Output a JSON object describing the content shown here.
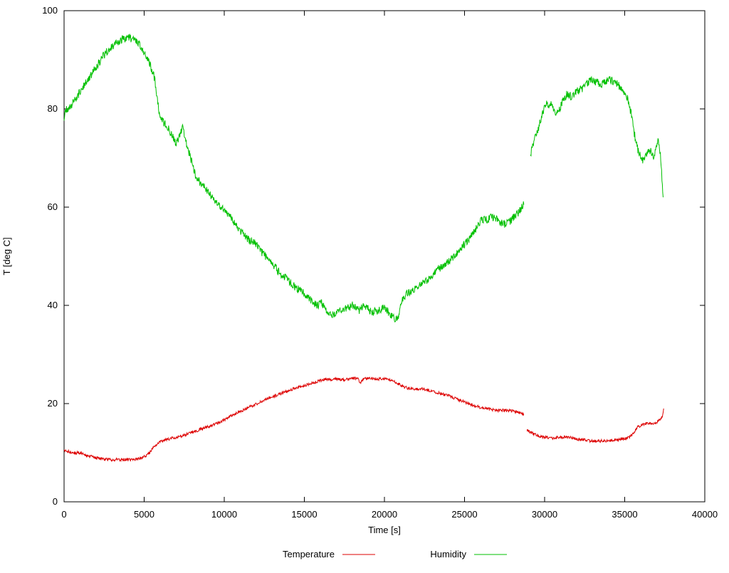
{
  "chart_data": {
    "type": "line",
    "title": "",
    "xlabel": "Time [s]",
    "ylabel": "T [deg C]",
    "xlim": [
      0,
      40000
    ],
    "ylim": [
      0,
      100
    ],
    "xticks": [
      0,
      5000,
      10000,
      15000,
      20000,
      25000,
      30000,
      35000,
      40000
    ],
    "yticks": [
      0,
      20,
      40,
      60,
      80,
      100
    ],
    "grid": false,
    "legend_position": "bottom-center",
    "background": "#ffffff",
    "axis_color": "#000000",
    "series": [
      {
        "name": "Temperature",
        "color": "#dd0000",
        "noise": 0.3,
        "segments": [
          [
            [
              0,
              10.5
            ],
            [
              300,
              10.2
            ],
            [
              600,
              10.0
            ],
            [
              900,
              10.0
            ],
            [
              1200,
              9.7
            ],
            [
              1500,
              9.4
            ],
            [
              1800,
              9.1
            ],
            [
              2100,
              8.9
            ],
            [
              2400,
              8.7
            ],
            [
              2800,
              8.6
            ],
            [
              3300,
              8.6
            ],
            [
              3800,
              8.6
            ],
            [
              4300,
              8.6
            ],
            [
              4700,
              8.8
            ],
            [
              5100,
              9.3
            ],
            [
              5400,
              10.2
            ],
            [
              5600,
              11.3
            ],
            [
              5800,
              11.8
            ],
            [
              6000,
              12.2
            ],
            [
              6300,
              12.6
            ],
            [
              6700,
              12.9
            ],
            [
              7100,
              13.2
            ],
            [
              7500,
              13.6
            ],
            [
              7900,
              14.1
            ],
            [
              8300,
              14.5
            ],
            [
              8700,
              15.0
            ],
            [
              9100,
              15.4
            ],
            [
              9500,
              15.9
            ],
            [
              9900,
              16.5
            ],
            [
              10300,
              17.3
            ],
            [
              10700,
              18.0
            ],
            [
              11100,
              18.5
            ],
            [
              11500,
              19.2
            ],
            [
              11900,
              19.8
            ],
            [
              12300,
              20.4
            ],
            [
              12700,
              21.0
            ],
            [
              13100,
              21.5
            ],
            [
              13500,
              22.0
            ],
            [
              13900,
              22.5
            ],
            [
              14300,
              23.0
            ],
            [
              14700,
              23.4
            ],
            [
              15100,
              23.8
            ],
            [
              15500,
              24.2
            ],
            [
              15900,
              24.6
            ],
            [
              16300,
              25.0
            ],
            [
              16700,
              24.8
            ],
            [
              17100,
              25.0
            ],
            [
              17500,
              24.8
            ],
            [
              17900,
              25.1
            ],
            [
              18300,
              25.2
            ],
            [
              18500,
              24.3
            ],
            [
              18700,
              25.0
            ],
            [
              19100,
              25.2
            ],
            [
              19500,
              25.0
            ],
            [
              19900,
              25.1
            ],
            [
              20300,
              24.8
            ],
            [
              20700,
              24.3
            ],
            [
              21100,
              23.6
            ],
            [
              21500,
              23.1
            ],
            [
              21900,
              23.0
            ],
            [
              22300,
              23.0
            ],
            [
              22700,
              22.8
            ],
            [
              23100,
              22.4
            ],
            [
              23500,
              22.1
            ],
            [
              23900,
              21.7
            ],
            [
              24300,
              21.2
            ],
            [
              24700,
              20.7
            ],
            [
              25100,
              20.2
            ],
            [
              25500,
              19.7
            ],
            [
              25900,
              19.3
            ],
            [
              26300,
              19.0
            ],
            [
              26700,
              18.8
            ],
            [
              27100,
              18.6
            ],
            [
              27500,
              18.6
            ],
            [
              27900,
              18.5
            ],
            [
              28300,
              18.3
            ],
            [
              28700,
              17.9
            ]
          ],
          [
            [
              28900,
              14.6
            ],
            [
              29200,
              14.0
            ],
            [
              29500,
              13.6
            ],
            [
              29800,
              13.3
            ],
            [
              30100,
              13.1
            ],
            [
              30500,
              13.0
            ],
            [
              30900,
              13.1
            ],
            [
              31300,
              13.2
            ],
            [
              31700,
              13.0
            ],
            [
              32100,
              12.7
            ],
            [
              32500,
              12.6
            ],
            [
              32900,
              12.4
            ],
            [
              33300,
              12.4
            ],
            [
              33700,
              12.4
            ],
            [
              34100,
              12.5
            ],
            [
              34500,
              12.6
            ],
            [
              34900,
              12.9
            ],
            [
              35200,
              13.0
            ],
            [
              35500,
              13.8
            ],
            [
              35800,
              15.2
            ],
            [
              36100,
              15.8
            ],
            [
              36400,
              16.0
            ],
            [
              36700,
              16.0
            ],
            [
              37000,
              16.2
            ],
            [
              37200,
              16.8
            ],
            [
              37350,
              17.5
            ],
            [
              37430,
              19.0
            ]
          ]
        ]
      },
      {
        "name": "Humidity",
        "color": "#00c000",
        "noise": 0.8,
        "segments": [
          [
            [
              0,
              78.0
            ],
            [
              150,
              80.0
            ],
            [
              400,
              80.5
            ],
            [
              700,
              82.0
            ],
            [
              1000,
              83.5
            ],
            [
              1300,
              85.0
            ],
            [
              1700,
              87.0
            ],
            [
              2100,
              89.0
            ],
            [
              2500,
              91.0
            ],
            [
              2900,
              92.5
            ],
            [
              3300,
              93.5
            ],
            [
              3700,
              94.3
            ],
            [
              4100,
              94.5
            ],
            [
              4400,
              94.0
            ],
            [
              4700,
              93.0
            ],
            [
              5000,
              91.5
            ],
            [
              5300,
              89.5
            ],
            [
              5600,
              87.0
            ],
            [
              5750,
              84.0
            ],
            [
              5900,
              80.0
            ],
            [
              6100,
              78.0
            ],
            [
              6400,
              76.5
            ],
            [
              6700,
              75.0
            ],
            [
              7000,
              73.0
            ],
            [
              7200,
              74.5
            ],
            [
              7400,
              76.0
            ],
            [
              7600,
              73.5
            ],
            [
              7900,
              70.0
            ],
            [
              8200,
              66.5
            ],
            [
              8500,
              65.0
            ],
            [
              8800,
              64.0
            ],
            [
              9100,
              62.5
            ],
            [
              9500,
              61.0
            ],
            [
              10000,
              59.5
            ],
            [
              10500,
              57.5
            ],
            [
              11000,
              55.0
            ],
            [
              11500,
              53.5
            ],
            [
              12000,
              52.5
            ],
            [
              12300,
              51.0
            ],
            [
              12700,
              49.5
            ],
            [
              13100,
              48.0
            ],
            [
              13500,
              46.5
            ],
            [
              14000,
              45.0
            ],
            [
              14500,
              43.5
            ],
            [
              15000,
              42.5
            ],
            [
              15400,
              41.0
            ],
            [
              15800,
              40.0
            ],
            [
              16100,
              40.5
            ],
            [
              16400,
              38.5
            ],
            [
              16800,
              38.0
            ],
            [
              17200,
              39.0
            ],
            [
              17600,
              39.5
            ],
            [
              18000,
              40.0
            ],
            [
              18400,
              39.0
            ],
            [
              18800,
              40.0
            ],
            [
              19200,
              38.5
            ],
            [
              19600,
              39.0
            ],
            [
              20000,
              39.5
            ],
            [
              20400,
              38.0
            ],
            [
              20700,
              37.0
            ],
            [
              20900,
              38.0
            ],
            [
              21100,
              41.0
            ],
            [
              21400,
              42.5
            ],
            [
              21800,
              43.0
            ],
            [
              22200,
              44.0
            ],
            [
              22600,
              45.0
            ],
            [
              23000,
              46.0
            ],
            [
              23400,
              47.5
            ],
            [
              23800,
              48.5
            ],
            [
              24200,
              49.5
            ],
            [
              24600,
              51.0
            ],
            [
              25000,
              52.5
            ],
            [
              25400,
              54.0
            ],
            [
              25800,
              56.0
            ],
            [
              26100,
              57.5
            ],
            [
              26400,
              57.5
            ],
            [
              26800,
              58.0
            ],
            [
              27100,
              57.5
            ],
            [
              27400,
              56.5
            ],
            [
              27800,
              57.0
            ],
            [
              28100,
              58.0
            ],
            [
              28400,
              59.0
            ],
            [
              28700,
              60.5
            ]
          ],
          [
            [
              29100,
              70.5
            ],
            [
              29300,
              73.0
            ],
            [
              29600,
              76.0
            ],
            [
              29900,
              79.5
            ],
            [
              30100,
              81.0
            ],
            [
              30400,
              81.0
            ],
            [
              30600,
              79.5
            ],
            [
              30900,
              79.5
            ],
            [
              31100,
              81.5
            ],
            [
              31400,
              83.0
            ],
            [
              31700,
              82.5
            ],
            [
              32000,
              83.5
            ],
            [
              32300,
              84.0
            ],
            [
              32600,
              85.0
            ],
            [
              32900,
              86.0
            ],
            [
              33200,
              85.5
            ],
            [
              33500,
              85.0
            ],
            [
              33800,
              85.5
            ],
            [
              34100,
              86.0
            ],
            [
              34400,
              85.5
            ],
            [
              34700,
              84.5
            ],
            [
              35000,
              83.0
            ],
            [
              35200,
              82.0
            ],
            [
              35400,
              79.0
            ],
            [
              35600,
              75.0
            ],
            [
              35800,
              72.0
            ],
            [
              36000,
              70.0
            ],
            [
              36200,
              69.5
            ],
            [
              36400,
              71.0
            ],
            [
              36600,
              71.5
            ],
            [
              36800,
              70.5
            ],
            [
              37000,
              72.5
            ],
            [
              37100,
              74.0
            ],
            [
              37250,
              70.0
            ],
            [
              37400,
              62.0
            ]
          ]
        ]
      }
    ]
  }
}
